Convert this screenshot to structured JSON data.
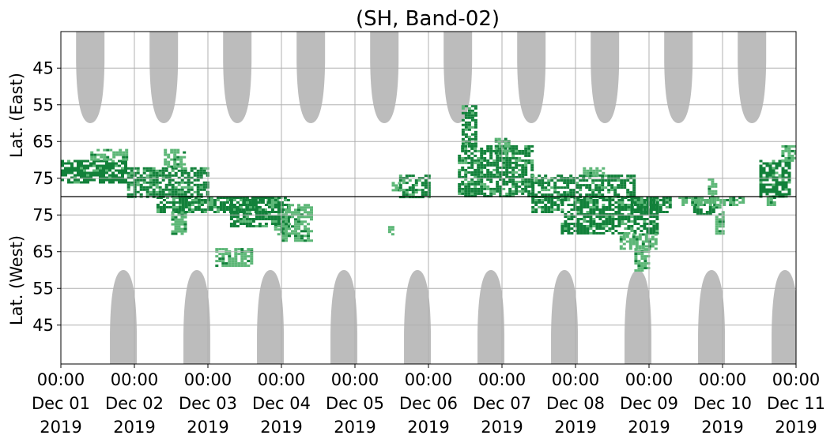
{
  "chart_data": {
    "type": "heatmap",
    "title": "(SH, Band-02)",
    "ylabel_top": "Lat. (East)",
    "ylabel_bottom": "Lat. (West)",
    "y_ticks_top": [
      "45",
      "55",
      "65",
      "75"
    ],
    "y_ticks_bottom": [
      "75",
      "65",
      "55",
      "45"
    ],
    "x_ticks": [
      {
        "time": "00:00",
        "day": "Dec 01",
        "year": "2019"
      },
      {
        "time": "00:00",
        "day": "Dec 02",
        "year": "2019"
      },
      {
        "time": "00:00",
        "day": "Dec 03",
        "year": "2019"
      },
      {
        "time": "00:00",
        "day": "Dec 04",
        "year": "2019"
      },
      {
        "time": "00:00",
        "day": "Dec 05",
        "year": "2019"
      },
      {
        "time": "00:00",
        "day": "Dec 06",
        "year": "2019"
      },
      {
        "time": "00:00",
        "day": "Dec 07",
        "year": "2019"
      },
      {
        "time": "00:00",
        "day": "Dec 08",
        "year": "2019"
      },
      {
        "time": "00:00",
        "day": "Dec 09",
        "year": "2019"
      },
      {
        "time": "00:00",
        "day": "Dec 10",
        "year": "2019"
      },
      {
        "time": "00:00",
        "day": "Dec 11",
        "year": "2019"
      }
    ],
    "x_range_days": [
      0,
      10
    ],
    "grid": true,
    "colors": {
      "strong": "#12813a",
      "weak": "#5db777",
      "daylight_mask": "#bcbcbc",
      "grid": "#b0b0b0",
      "divider": "#000000"
    },
    "daylight_mask_centers_east_day": [
      0.4,
      1.4,
      2.4,
      3.4,
      4.4,
      5.4,
      6.4,
      7.4,
      8.4,
      9.4
    ],
    "daylight_mask_centers_west_day": [
      0.85,
      1.85,
      2.85,
      3.85,
      4.85,
      5.85,
      6.85,
      7.85,
      8.85,
      9.85
    ],
    "activity_regions": [
      {
        "x0": 0.0,
        "x1": 0.9,
        "lat_top": 70,
        "lat_bottom": 76,
        "hemisphere": "east",
        "intensity": "strong"
      },
      {
        "x0": 0.4,
        "x1": 0.9,
        "lat_top": 67,
        "lat_bottom": 70,
        "hemisphere": "east",
        "intensity": "weak"
      },
      {
        "x0": 0.9,
        "x1": 2.0,
        "lat_top": 72,
        "lat_bottom": 80,
        "hemisphere": "east",
        "intensity": "strong"
      },
      {
        "x0": 1.4,
        "x1": 1.7,
        "lat_top": 67,
        "lat_bottom": 72,
        "hemisphere": "east",
        "intensity": "weak"
      },
      {
        "x0": 1.3,
        "x1": 2.8,
        "lat_top": 80,
        "lat_bottom": 76,
        "hemisphere": "west",
        "intensity": "strong"
      },
      {
        "x0": 2.8,
        "x1": 3.0,
        "lat_top": 80,
        "lat_bottom": 78,
        "hemisphere": "west",
        "intensity": "weak"
      },
      {
        "x0": 1.5,
        "x1": 1.7,
        "lat_top": 76,
        "lat_bottom": 70,
        "hemisphere": "west",
        "intensity": "weak"
      },
      {
        "x0": 2.3,
        "x1": 3.1,
        "lat_top": 80,
        "lat_bottom": 72,
        "hemisphere": "west",
        "intensity": "strong"
      },
      {
        "x0": 2.9,
        "x1": 3.1,
        "lat_top": 72,
        "lat_bottom": 70,
        "hemisphere": "west",
        "intensity": "weak"
      },
      {
        "x0": 3.0,
        "x1": 3.4,
        "lat_top": 78,
        "lat_bottom": 68,
        "hemisphere": "west",
        "intensity": "weak"
      },
      {
        "x0": 2.1,
        "x1": 2.6,
        "lat_top": 66,
        "lat_bottom": 61,
        "hemisphere": "west",
        "intensity": "weak"
      },
      {
        "x0": 4.5,
        "x1": 4.6,
        "lat_top": 76,
        "lat_bottom": 78,
        "hemisphere": "east",
        "intensity": "weak"
      },
      {
        "x0": 4.45,
        "x1": 4.5,
        "lat_top": 72,
        "lat_bottom": 70,
        "hemisphere": "west",
        "intensity": "weak"
      },
      {
        "x0": 5.45,
        "x1": 5.65,
        "lat_top": 55,
        "lat_bottom": 66,
        "hemisphere": "east",
        "intensity": "strong"
      },
      {
        "x0": 5.4,
        "x1": 6.4,
        "lat_top": 66,
        "lat_bottom": 80,
        "hemisphere": "east",
        "intensity": "strong"
      },
      {
        "x0": 4.6,
        "x1": 5.0,
        "lat_top": 74,
        "lat_bottom": 80,
        "hemisphere": "east",
        "intensity": "strong"
      },
      {
        "x0": 5.9,
        "x1": 6.1,
        "lat_top": 64,
        "lat_bottom": 68,
        "hemisphere": "east",
        "intensity": "weak"
      },
      {
        "x0": 6.4,
        "x1": 7.8,
        "lat_top": 74,
        "lat_bottom": 80,
        "hemisphere": "east",
        "intensity": "strong"
      },
      {
        "x0": 7.1,
        "x1": 7.4,
        "lat_top": 72,
        "lat_bottom": 74,
        "hemisphere": "east",
        "intensity": "weak"
      },
      {
        "x0": 6.4,
        "x1": 6.8,
        "lat_top": 80,
        "lat_bottom": 76,
        "hemisphere": "west",
        "intensity": "strong"
      },
      {
        "x0": 6.8,
        "x1": 8.1,
        "lat_top": 80,
        "lat_bottom": 70,
        "hemisphere": "west",
        "intensity": "strong"
      },
      {
        "x0": 7.6,
        "x1": 8.1,
        "lat_top": 70,
        "lat_bottom": 66,
        "hemisphere": "west",
        "intensity": "weak"
      },
      {
        "x0": 7.8,
        "x1": 8.0,
        "lat_top": 66,
        "lat_bottom": 60,
        "hemisphere": "west",
        "intensity": "weak"
      },
      {
        "x0": 7.75,
        "x1": 8.3,
        "lat_top": 80,
        "lat_bottom": 76,
        "hemisphere": "west",
        "intensity": "strong"
      },
      {
        "x0": 8.6,
        "x1": 8.9,
        "lat_top": 80,
        "lat_bottom": 75,
        "hemisphere": "west",
        "intensity": "strong"
      },
      {
        "x0": 8.4,
        "x1": 9.3,
        "lat_top": 80,
        "lat_bottom": 78,
        "hemisphere": "west",
        "intensity": "weak"
      },
      {
        "x0": 8.9,
        "x1": 9.0,
        "lat_top": 78,
        "lat_bottom": 70,
        "hemisphere": "west",
        "intensity": "weak"
      },
      {
        "x0": 8.8,
        "x1": 8.9,
        "lat_top": 75,
        "lat_bottom": 80,
        "hemisphere": "east",
        "intensity": "weak"
      },
      {
        "x0": 9.5,
        "x1": 9.9,
        "lat_top": 70,
        "lat_bottom": 80,
        "hemisphere": "east",
        "intensity": "strong"
      },
      {
        "x0": 9.8,
        "x1": 10.0,
        "lat_top": 66,
        "lat_bottom": 70,
        "hemisphere": "east",
        "intensity": "weak"
      },
      {
        "x0": 9.6,
        "x1": 9.7,
        "lat_top": 80,
        "lat_bottom": 78,
        "hemisphere": "west",
        "intensity": "weak"
      }
    ]
  }
}
